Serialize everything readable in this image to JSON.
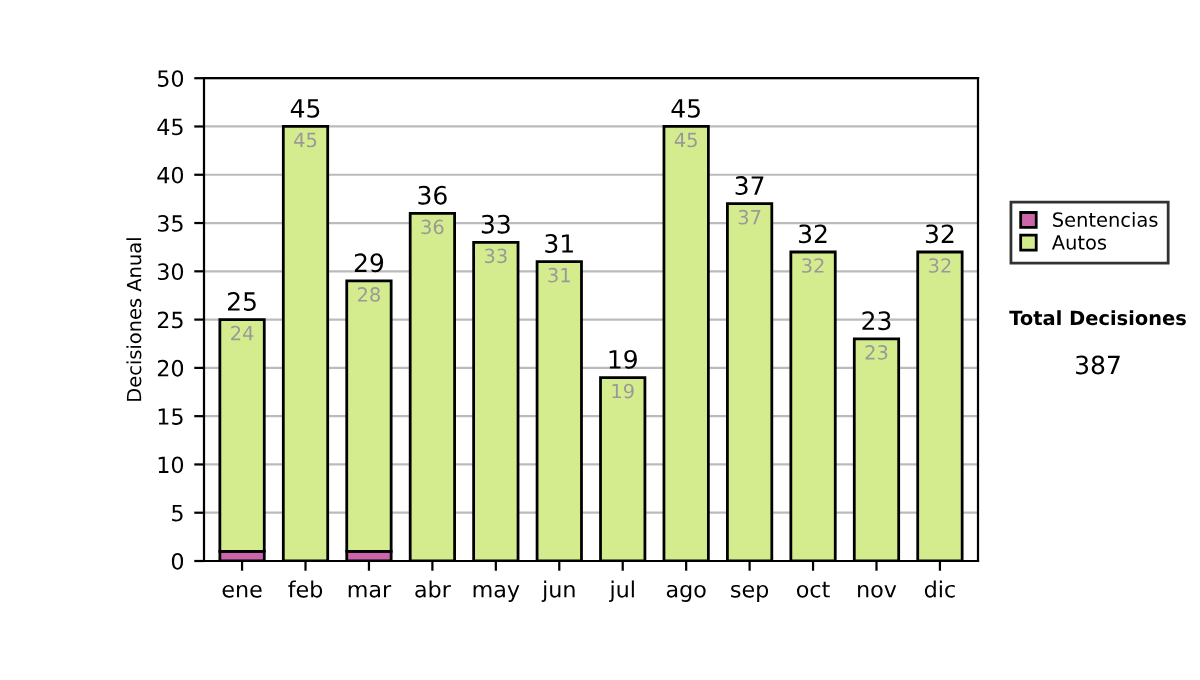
{
  "chart_data": {
    "type": "bar",
    "stacked": true,
    "ylabel": "Decisiones Anual",
    "categories": [
      "ene",
      "feb",
      "mar",
      "abr",
      "may",
      "jun",
      "jul",
      "ago",
      "sep",
      "oct",
      "nov",
      "dic"
    ],
    "series": [
      {
        "name": "Sentencias",
        "color": "#cc66aa",
        "values": [
          1,
          0,
          1,
          0,
          0,
          0,
          0,
          0,
          0,
          0,
          0,
          0
        ]
      },
      {
        "name": "Autos",
        "color": "#d4ec8e",
        "values": [
          24,
          45,
          28,
          36,
          33,
          31,
          19,
          45,
          37,
          32,
          23,
          32
        ],
        "value_labels": [
          "24",
          "45",
          "28",
          "36",
          "33",
          "31",
          "19",
          "45",
          "37",
          "32",
          "23",
          "32"
        ]
      }
    ],
    "totals": [
      "25",
      "45",
      "29",
      "36",
      "33",
      "31",
      "19",
      "45",
      "37",
      "32",
      "23",
      "32"
    ],
    "ylim": [
      0,
      50
    ],
    "yticks": [
      0,
      5,
      10,
      15,
      20,
      25,
      30,
      35,
      40,
      45,
      50
    ],
    "grid": "y",
    "legend": "right",
    "annotations": [
      "Total Decisiones",
      "387"
    ]
  }
}
